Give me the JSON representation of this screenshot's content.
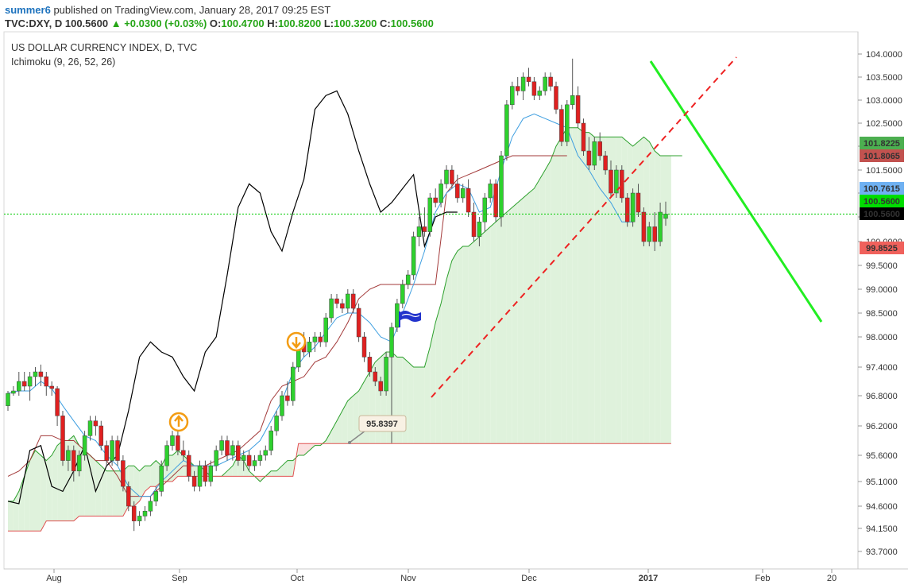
{
  "header": {
    "author": "summer6",
    "published_text": "published on TradingView.com, January 28, 2017 09:25 EST",
    "symbol": "TVC:DXY, D",
    "last": "100.5600",
    "arrow": "▲",
    "change": "+0.0300 (+0.03%)",
    "o_label": "O:",
    "o_value": "100.4700",
    "h_label": "H:",
    "h_value": "100.8200",
    "l_label": "L:",
    "l_value": "100.3200",
    "c_label": "C:",
    "c_value": "100.5600"
  },
  "chart_data": {
    "type": "candlestick",
    "title": "US DOLLAR CURRENCY INDEX, D, TVC",
    "indicator_label": "Ichimoku (9, 26, 52, 26)",
    "y_ticks": [
      "104.0000",
      "103.5000",
      "103.0000",
      "102.5000",
      "102.0000",
      "101.5000",
      "101.0000",
      "100.5000",
      "100.0000",
      "99.5000",
      "99.0000",
      "98.5000",
      "98.0000",
      "97.4000",
      "96.8000",
      "96.2000",
      "95.6000",
      "95.1000",
      "94.6000",
      "94.1500",
      "93.7000"
    ],
    "x_ticks": [
      {
        "label": "Aug"
      },
      {
        "label": "Sep"
      },
      {
        "label": "Oct"
      },
      {
        "label": "Nov"
      },
      {
        "label": "Dec"
      },
      {
        "label": "2017",
        "bold": true
      },
      {
        "label": "Feb"
      },
      {
        "label": "20"
      }
    ],
    "price_labels": [
      {
        "text": "101.8225",
        "color": "#4caf50",
        "name": "senkou-a-price-label"
      },
      {
        "text": "101.8065",
        "color": "#c2524f",
        "name": "kijun-price-label"
      },
      {
        "text": "100.7615",
        "color": "#6fb1f2",
        "name": "tenkan-price-label"
      },
      {
        "text": "100.5600",
        "color": "#00dd00",
        "name": "lagging-price-label"
      },
      {
        "text": "100.5600",
        "color": "#000000",
        "name": "last-price-label"
      },
      {
        "text": "99.8525",
        "color": "#f0615c",
        "name": "senkou-b-price-label"
      }
    ],
    "callout": {
      "text": "95.8397"
    },
    "last_price": 100.56,
    "colors": {
      "up_candle": "#2ed12e",
      "down_candle": "#e02020",
      "tenkan": "#3d9ee0",
      "kijun": "#a33a3a",
      "lagging": "#000000",
      "span_a": "#2ca02c",
      "span_b": "#e05050",
      "cloud_green": "#dff2dc",
      "cloud_red": "#fbe0e0",
      "trend_down": "#22ee22",
      "trend_up": "#ee2222",
      "signal": "#f39c12"
    },
    "candles": [
      [
        96.6,
        96.9,
        96.5,
        96.85
      ],
      [
        96.85,
        97.0,
        96.8,
        96.9
      ],
      [
        96.9,
        97.3,
        96.8,
        97.1
      ],
      [
        97.1,
        97.3,
        96.9,
        97.0
      ],
      [
        97.0,
        97.3,
        96.7,
        97.2
      ],
      [
        97.2,
        97.4,
        97.0,
        97.3
      ],
      [
        97.3,
        97.45,
        97.0,
        97.2
      ],
      [
        97.2,
        97.3,
        96.8,
        97.0
      ],
      [
        97.0,
        97.1,
        96.8,
        96.95
      ],
      [
        96.95,
        97.0,
        96.2,
        96.4
      ],
      [
        96.4,
        96.5,
        95.4,
        95.5
      ],
      [
        95.5,
        95.8,
        95.3,
        95.7
      ],
      [
        95.7,
        95.8,
        95.1,
        95.3
      ],
      [
        95.3,
        95.7,
        95.2,
        95.6
      ],
      [
        95.6,
        96.1,
        95.5,
        96.0
      ],
      [
        96.0,
        96.4,
        95.9,
        96.3
      ],
      [
        96.3,
        96.4,
        96.0,
        96.2
      ],
      [
        96.2,
        96.3,
        95.7,
        95.8
      ],
      [
        95.8,
        95.9,
        95.4,
        95.5
      ],
      [
        95.5,
        96.0,
        95.4,
        95.9
      ],
      [
        95.9,
        96.0,
        95.4,
        95.5
      ],
      [
        95.5,
        95.6,
        94.9,
        95.0
      ],
      [
        95.0,
        95.1,
        94.5,
        94.6
      ],
      [
        94.6,
        94.7,
        94.1,
        94.3
      ],
      [
        94.3,
        94.5,
        94.2,
        94.4
      ],
      [
        94.4,
        94.6,
        94.3,
        94.5
      ],
      [
        94.5,
        94.8,
        94.4,
        94.7
      ],
      [
        94.7,
        95.0,
        94.6,
        94.9
      ],
      [
        94.9,
        95.5,
        94.8,
        95.4
      ],
      [
        95.4,
        95.9,
        95.3,
        95.8
      ],
      [
        95.8,
        96.1,
        95.7,
        96.0
      ],
      [
        96.0,
        96.1,
        95.6,
        95.7
      ],
      [
        95.7,
        95.9,
        95.5,
        95.6
      ],
      [
        95.6,
        95.7,
        95.1,
        95.2
      ],
      [
        95.2,
        95.3,
        94.9,
        95.0
      ],
      [
        95.0,
        95.5,
        94.9,
        95.4
      ],
      [
        95.4,
        95.5,
        95.0,
        95.1
      ],
      [
        95.1,
        95.5,
        95.0,
        95.4
      ],
      [
        95.4,
        95.8,
        95.3,
        95.7
      ],
      [
        95.7,
        96.0,
        95.6,
        95.9
      ],
      [
        95.9,
        96.0,
        95.5,
        95.6
      ],
      [
        95.6,
        95.9,
        95.5,
        95.8
      ],
      [
        95.8,
        95.9,
        95.4,
        95.5
      ],
      [
        95.5,
        95.7,
        95.3,
        95.6
      ],
      [
        95.6,
        95.7,
        95.3,
        95.4
      ],
      [
        95.4,
        95.6,
        95.3,
        95.5
      ],
      [
        95.5,
        95.7,
        95.4,
        95.6
      ],
      [
        95.6,
        95.8,
        95.5,
        95.7
      ],
      [
        95.7,
        96.2,
        95.6,
        96.1
      ],
      [
        96.1,
        96.5,
        96.0,
        96.4
      ],
      [
        96.4,
        96.9,
        96.3,
        96.8
      ],
      [
        96.8,
        97.1,
        96.6,
        96.7
      ],
      [
        96.7,
        97.5,
        96.6,
        97.4
      ],
      [
        97.4,
        98.0,
        97.3,
        97.9
      ],
      [
        97.9,
        98.1,
        97.6,
        97.7
      ],
      [
        97.7,
        98.0,
        97.6,
        97.9
      ],
      [
        97.9,
        98.1,
        97.7,
        98.0
      ],
      [
        98.0,
        98.1,
        97.8,
        97.9
      ],
      [
        97.9,
        98.5,
        97.8,
        98.4
      ],
      [
        98.4,
        98.9,
        98.3,
        98.8
      ],
      [
        98.8,
        98.9,
        98.6,
        98.7
      ],
      [
        98.7,
        98.8,
        98.5,
        98.6
      ],
      [
        98.6,
        99.0,
        98.5,
        98.9
      ],
      [
        98.9,
        99.0,
        98.5,
        98.6
      ],
      [
        98.6,
        98.7,
        97.9,
        98.0
      ],
      [
        98.0,
        98.1,
        97.5,
        97.6
      ],
      [
        97.6,
        97.7,
        97.2,
        97.3
      ],
      [
        97.3,
        97.4,
        97.0,
        97.1
      ],
      [
        97.1,
        97.2,
        96.8,
        96.9
      ],
      [
        96.9,
        97.7,
        96.8,
        97.6
      ],
      [
        97.6,
        98.3,
        95.85,
        98.2
      ],
      [
        98.2,
        98.8,
        98.1,
        98.7
      ],
      [
        98.7,
        99.2,
        98.6,
        99.1
      ],
      [
        99.1,
        99.4,
        99.0,
        99.3
      ],
      [
        99.3,
        100.2,
        99.2,
        100.1
      ],
      [
        100.1,
        100.5,
        99.9,
        100.3
      ],
      [
        100.3,
        100.7,
        100.1,
        100.2
      ],
      [
        100.2,
        101.0,
        100.1,
        100.9
      ],
      [
        100.9,
        101.1,
        100.7,
        100.8
      ],
      [
        100.8,
        101.3,
        100.7,
        101.2
      ],
      [
        101.2,
        101.6,
        101.1,
        101.5
      ],
      [
        101.5,
        101.6,
        101.1,
        101.2
      ],
      [
        101.2,
        101.4,
        100.8,
        100.9
      ],
      [
        100.9,
        101.2,
        100.8,
        101.1
      ],
      [
        101.1,
        101.3,
        100.5,
        100.6
      ],
      [
        100.6,
        100.8,
        100.0,
        100.1
      ],
      [
        100.1,
        100.5,
        99.9,
        100.4
      ],
      [
        100.4,
        101.0,
        100.2,
        100.9
      ],
      [
        100.9,
        101.3,
        100.8,
        101.2
      ],
      [
        101.2,
        101.3,
        100.4,
        100.5
      ],
      [
        100.5,
        101.9,
        100.3,
        101.8
      ],
      [
        101.8,
        103.0,
        101.7,
        102.9
      ],
      [
        102.9,
        103.4,
        102.8,
        103.3
      ],
      [
        103.3,
        103.5,
        103.1,
        103.2
      ],
      [
        103.2,
        103.6,
        103.0,
        103.5
      ],
      [
        103.5,
        103.7,
        103.3,
        103.4
      ],
      [
        103.4,
        103.5,
        103.0,
        103.1
      ],
      [
        103.1,
        103.3,
        103.0,
        103.2
      ],
      [
        103.2,
        103.6,
        103.1,
        103.5
      ],
      [
        103.5,
        103.6,
        103.2,
        103.3
      ],
      [
        103.3,
        103.4,
        102.7,
        102.8
      ],
      [
        102.8,
        102.9,
        102.0,
        102.1
      ],
      [
        102.1,
        103.0,
        102.0,
        102.9
      ],
      [
        102.9,
        103.9,
        102.8,
        103.1
      ],
      [
        103.1,
        103.3,
        102.4,
        102.5
      ],
      [
        102.5,
        102.6,
        101.8,
        101.9
      ],
      [
        101.9,
        102.2,
        101.5,
        101.6
      ],
      [
        101.6,
        102.2,
        101.5,
        102.1
      ],
      [
        102.1,
        102.3,
        101.7,
        101.8
      ],
      [
        101.8,
        101.9,
        101.4,
        101.5
      ],
      [
        101.5,
        101.7,
        100.9,
        101.0
      ],
      [
        101.0,
        101.6,
        100.9,
        101.5
      ],
      [
        101.5,
        101.6,
        100.8,
        100.9
      ],
      [
        100.9,
        101.0,
        100.3,
        100.4
      ],
      [
        100.4,
        101.1,
        100.3,
        101.0
      ],
      [
        101.0,
        101.2,
        100.5,
        100.6
      ],
      [
        100.6,
        100.7,
        99.9,
        100.0
      ],
      [
        100.0,
        100.4,
        99.9,
        100.3
      ],
      [
        100.3,
        100.6,
        99.8,
        100.0
      ],
      [
        100.0,
        100.8,
        99.9,
        100.6
      ],
      [
        100.47,
        100.82,
        100.32,
        100.56
      ]
    ],
    "tenkan": [
      96.85,
      null,
      96.9,
      null,
      96.9,
      null,
      97.1,
      null,
      96.95,
      null,
      96.6,
      null,
      96.3,
      null,
      96.0,
      null,
      95.9,
      null,
      95.6,
      null,
      95.4,
      null,
      95.0,
      null,
      94.8,
      null,
      94.8,
      null,
      95.1,
      null,
      95.3,
      null,
      95.5,
      null,
      95.4,
      null,
      95.4,
      null,
      95.4,
      null,
      95.5,
      null,
      95.6,
      null,
      95.7,
      null,
      95.9,
      null,
      96.3,
      null,
      96.7,
      null,
      97.3,
      null,
      97.6,
      null,
      97.8,
      null,
      98.1,
      null,
      98.4,
      null,
      98.5,
      null,
      98.5,
      null,
      98.3,
      null,
      98.0,
      null,
      97.9,
      null,
      98.5,
      null,
      99.1,
      null,
      99.8,
      null,
      100.6,
      null,
      101.0,
      null,
      101.2,
      null,
      101.1,
      null,
      100.6,
      null,
      100.7,
      null,
      101.5,
      null,
      102.2,
      null,
      102.6,
      null,
      102.7,
      null,
      102.6,
      null,
      102.5,
      null,
      102.4,
      null,
      101.8,
      null,
      101.5,
      null,
      101.1,
      null,
      100.8,
      null,
      100.4,
      null,
      100.4
    ],
    "kijun": [
      95.2,
      null,
      95.3,
      null,
      95.5,
      null,
      96.0,
      null,
      96.0,
      null,
      95.9,
      null,
      95.9,
      null,
      95.7,
      null,
      95.5,
      null,
      95.5,
      null,
      95.2,
      null,
      94.8,
      null,
      94.8,
      null,
      94.8,
      null,
      95.0,
      null,
      95.2,
      null,
      95.4,
      null,
      95.4,
      null,
      95.4,
      null,
      95.5,
      null,
      95.6,
      null,
      95.7,
      null,
      95.9,
      null,
      96.1,
      null,
      96.7,
      null,
      97.0,
      null,
      97.1,
      null,
      97.2,
      null,
      97.5,
      null,
      97.6,
      null,
      97.9,
      null,
      98.3,
      null,
      98.8,
      null,
      99.0,
      null,
      99.1,
      null,
      99.1,
      null,
      99.1,
      null,
      99.1,
      null,
      99.1,
      null,
      99.1,
      null,
      101.0,
      null,
      101.3,
      null,
      101.4,
      null,
      101.5,
      null,
      101.6,
      null,
      101.7,
      null,
      101.8,
      null,
      101.8,
      null,
      101.8,
      null,
      101.8,
      null,
      101.8,
      null,
      101.8
    ],
    "lagging": [
      94.7,
      null,
      94.65,
      null,
      95.7,
      null,
      95.8,
      null,
      95.0,
      null,
      94.9,
      null,
      95.3,
      null,
      95.8,
      null,
      94.9,
      null,
      95.4,
      null,
      95.6,
      null,
      96.5,
      null,
      97.6,
      null,
      97.9,
      null,
      97.7,
      null,
      97.6,
      null,
      97.2,
      null,
      96.9,
      null,
      97.7,
      null,
      98.0,
      null,
      99.3,
      null,
      100.7,
      null,
      101.2,
      null,
      101.0,
      null,
      100.2,
      null,
      99.8,
      null,
      100.6,
      null,
      101.3,
      null,
      102.8,
      null,
      103.1,
      null,
      103.2,
      null,
      102.7,
      null,
      101.9,
      null,
      101.2,
      null,
      100.6,
      null,
      100.8,
      null,
      101.1,
      null,
      101.4,
      null,
      99.9,
      null,
      100.5,
      null,
      100.6,
      null,
      100.6
    ],
    "span_a": [
      94.7,
      94.7,
      94.9,
      95.2,
      95.5,
      95.7,
      95.6,
      95.5,
      95.6,
      95.8,
      95.9,
      95.9,
      96.0,
      95.8,
      95.7,
      95.6,
      95.5,
      95.4,
      95.3,
      95.3,
      95.3,
      95.3,
      95.4,
      95.4,
      95.3,
      95.4,
      95.4,
      95.5,
      95.4,
      95.6,
      95.6,
      95.7,
      95.6,
      95.5,
      95.4,
      95.4,
      95.3,
      95.2,
      95.2,
      95.2,
      95.3,
      95.4,
      95.6,
      95.5,
      95.3,
      95.2,
      95.1,
      95.2,
      95.3,
      95.3,
      95.4,
      95.5,
      95.5,
      95.6,
      95.6,
      95.7,
      95.8,
      95.8,
      95.9,
      96.1,
      96.3,
      96.5,
      96.7,
      96.8,
      96.9,
      97.1,
      97.3,
      97.5,
      97.6,
      97.7,
      97.7,
      97.6,
      97.6,
      97.5,
      97.4,
      97.4,
      97.4,
      97.8,
      98.3,
      98.7,
      99.2,
      99.6,
      99.8,
      99.9,
      99.9,
      100.0,
      100.1,
      100.2,
      100.3,
      100.4,
      100.5,
      100.6,
      100.7,
      100.8,
      100.9,
      101.0,
      101.1,
      101.3,
      101.5,
      101.7,
      102.0,
      102.2,
      102.4,
      102.4,
      102.4,
      102.3,
      102.3,
      102.2,
      102.2,
      102.2,
      102.2,
      102.2,
      102.2,
      102.1,
      102.0,
      102.1,
      102.2,
      102.1,
      101.9,
      101.8,
      101.8,
      101.8,
      101.8,
      101.8
    ],
    "span_b": [
      94.1,
      94.1,
      94.1,
      94.1,
      94.1,
      94.1,
      94.1,
      94.3,
      94.3,
      94.3,
      94.3,
      94.3,
      94.3,
      94.4,
      94.4,
      94.4,
      94.4,
      94.4,
      94.4,
      94.4,
      94.4,
      94.4,
      94.6,
      94.6,
      94.7,
      94.9,
      95.0,
      95.0,
      95.1,
      95.1,
      95.1,
      95.2,
      95.2,
      95.2,
      95.2,
      95.2,
      95.2,
      95.2,
      95.2,
      95.2,
      95.2,
      95.2,
      95.2,
      95.2,
      95.2,
      95.2,
      95.2,
      95.2,
      95.2,
      95.2,
      95.2,
      95.2,
      95.2,
      95.84,
      95.84,
      95.84,
      95.84,
      95.84,
      95.84,
      95.84,
      95.84,
      95.84,
      95.84,
      95.84,
      95.84,
      95.84,
      95.84,
      95.84,
      95.84,
      95.84,
      95.84,
      95.84,
      95.84,
      95.84,
      95.84,
      95.84,
      95.84,
      95.84,
      95.84,
      95.84,
      95.84,
      95.84,
      95.84,
      95.84,
      95.84,
      95.84,
      95.84,
      95.84,
      95.84,
      95.84,
      95.84,
      95.84,
      95.84,
      95.84,
      95.84,
      95.84,
      95.84,
      95.84,
      95.84,
      95.84,
      95.84,
      95.84,
      95.84,
      95.84,
      95.84,
      95.84,
      95.84,
      95.84,
      95.84,
      95.84,
      95.84,
      95.84,
      95.84,
      95.84,
      95.84,
      95.84,
      95.84,
      95.84,
      95.84,
      95.84,
      95.84,
      95.84
    ]
  }
}
